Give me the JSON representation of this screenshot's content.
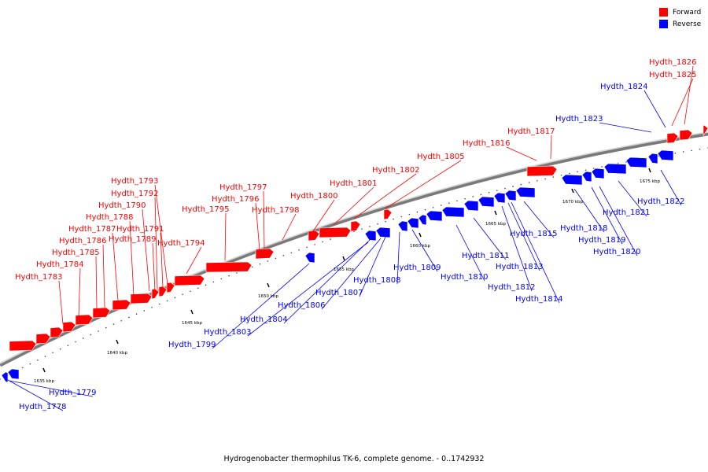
{
  "legend": {
    "forward": {
      "label": "Forward",
      "color": "#ff0000"
    },
    "reverse": {
      "label": "Reverse",
      "color": "#0000ff"
    }
  },
  "caption": "Hydrogenobacter thermophilus TK-6, complete genome. - 0..1742932",
  "ruler": {
    "unit": "kbp",
    "ticks": [
      1635,
      1640,
      1645,
      1650,
      1655,
      1660,
      1665,
      1670,
      1675
    ]
  },
  "genes": [
    {
      "name": "Hydth_1778",
      "strand": "reverse"
    },
    {
      "name": "Hydth_1779",
      "strand": "reverse"
    },
    {
      "name": "Hydth_1783",
      "strand": "forward"
    },
    {
      "name": "Hydth_1784",
      "strand": "forward"
    },
    {
      "name": "Hydth_1785",
      "strand": "forward"
    },
    {
      "name": "Hydth_1786",
      "strand": "forward"
    },
    {
      "name": "Hydth_1787",
      "strand": "forward"
    },
    {
      "name": "Hydth_1788",
      "strand": "forward"
    },
    {
      "name": "Hydth_1789",
      "strand": "forward"
    },
    {
      "name": "Hydth_1790",
      "strand": "forward"
    },
    {
      "name": "Hydth_1791",
      "strand": "forward"
    },
    {
      "name": "Hydth_1792",
      "strand": "forward"
    },
    {
      "name": "Hydth_1793",
      "strand": "forward"
    },
    {
      "name": "Hydth_1794",
      "strand": "forward"
    },
    {
      "name": "Hydth_1795",
      "strand": "forward"
    },
    {
      "name": "Hydth_1796",
      "strand": "forward"
    },
    {
      "name": "Hydth_1797",
      "strand": "forward"
    },
    {
      "name": "Hydth_1798",
      "strand": "forward"
    },
    {
      "name": "Hydth_1799",
      "strand": "reverse"
    },
    {
      "name": "Hydth_1800",
      "strand": "forward"
    },
    {
      "name": "Hydth_1801",
      "strand": "forward"
    },
    {
      "name": "Hydth_1802",
      "strand": "forward"
    },
    {
      "name": "Hydth_1803",
      "strand": "reverse"
    },
    {
      "name": "Hydth_1804",
      "strand": "reverse"
    },
    {
      "name": "Hydth_1805",
      "strand": "forward"
    },
    {
      "name": "Hydth_1806",
      "strand": "reverse"
    },
    {
      "name": "Hydth_1807",
      "strand": "reverse"
    },
    {
      "name": "Hydth_1808",
      "strand": "reverse"
    },
    {
      "name": "Hydth_1809",
      "strand": "reverse"
    },
    {
      "name": "Hydth_1810",
      "strand": "reverse"
    },
    {
      "name": "Hydth_1811",
      "strand": "reverse"
    },
    {
      "name": "Hydth_1812",
      "strand": "reverse"
    },
    {
      "name": "Hydth_1813",
      "strand": "reverse"
    },
    {
      "name": "Hydth_1814",
      "strand": "reverse"
    },
    {
      "name": "Hydth_1815",
      "strand": "reverse"
    },
    {
      "name": "Hydth_1816",
      "strand": "forward"
    },
    {
      "name": "Hydth_1817",
      "strand": "forward"
    },
    {
      "name": "Hydth_1818",
      "strand": "reverse"
    },
    {
      "name": "Hydth_1819",
      "strand": "reverse"
    },
    {
      "name": "Hydth_1820",
      "strand": "reverse"
    },
    {
      "name": "Hydth_1821",
      "strand": "reverse"
    },
    {
      "name": "Hydth_1822",
      "strand": "reverse"
    },
    {
      "name": "Hydth_1823",
      "strand": "reverse"
    },
    {
      "name": "Hydth_1824",
      "strand": "reverse"
    },
    {
      "name": "Hydth_1825",
      "strand": "forward"
    },
    {
      "name": "Hydth_1826",
      "strand": "forward"
    }
  ]
}
